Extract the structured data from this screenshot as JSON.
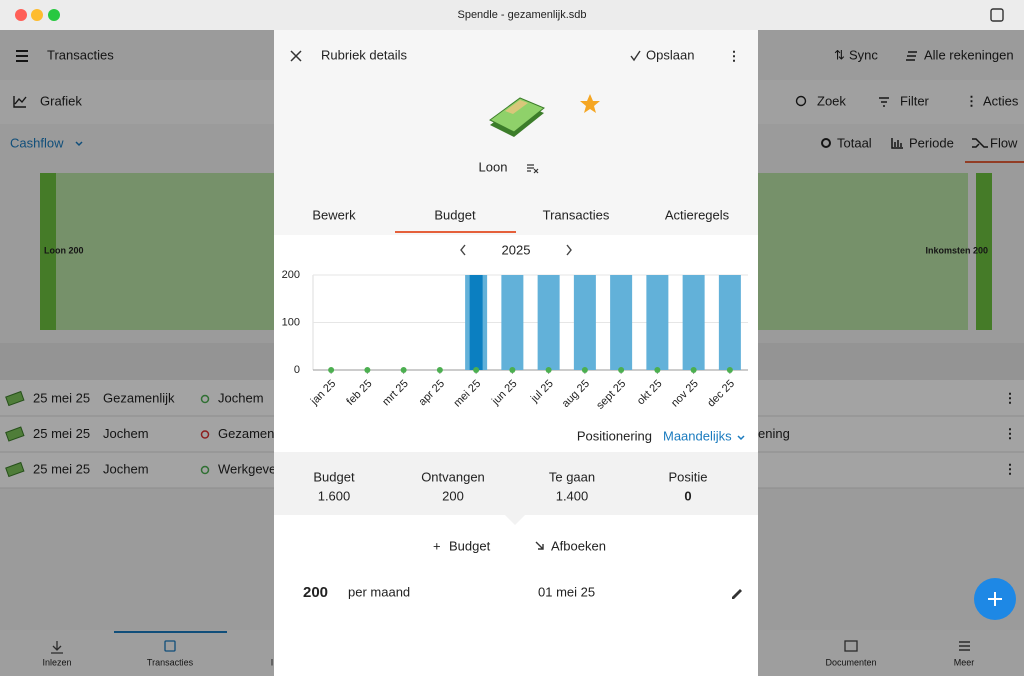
{
  "window": {
    "title": "Spendle - gezamenlijk.sdb"
  },
  "background": {
    "toolbar": {
      "title": "Transacties",
      "sync": "Sync",
      "accounts": "Alle rekeningen"
    },
    "subbar": {
      "title": "Grafiek",
      "search": "Zoek",
      "filter": "Filter",
      "actions": "Acties"
    },
    "view": {
      "selector": "Cashflow",
      "tabs": [
        "Totaal",
        "Periode",
        "Flow"
      ]
    },
    "flow": {
      "left": "Loon 200",
      "right": "Inkomsten 200"
    },
    "transactions": [
      {
        "date": "25 mei 25",
        "account": "Gezamenlijk",
        "counterparty": "Jochem"
      },
      {
        "date": "25 mei 25",
        "account": "Jochem",
        "counterparty": "Gezamen",
        "extra": "ening"
      },
      {
        "date": "25 mei 25",
        "account": "Jochem",
        "counterparty": "Werkgeve"
      }
    ],
    "nav": [
      "Inlezen",
      "Transacties",
      "I",
      "Documenten",
      "Meer"
    ]
  },
  "dialog": {
    "title": "Rubriek details",
    "save": "Opslaan",
    "category": "Loon",
    "tabs": [
      "Bewerk",
      "Budget",
      "Transacties",
      "Actieregels"
    ],
    "year": "2025",
    "positioning": {
      "label": "Positionering",
      "value": "Maandelijks"
    },
    "summary": [
      {
        "label": "Budget",
        "value": "1.600"
      },
      {
        "label": "Ontvangen",
        "value": "200"
      },
      {
        "label": "Te gaan",
        "value": "1.400"
      },
      {
        "label": "Positie",
        "value": "0"
      }
    ],
    "actions": [
      "Budget",
      "Afboeken"
    ],
    "entry": {
      "amount": "200",
      "period": "per maand",
      "date": "01 mei 25"
    }
  },
  "chart_data": {
    "type": "bar",
    "categories": [
      "jan 25",
      "feb 25",
      "mrt 25",
      "apr 25",
      "mei 25",
      "jun 25",
      "jul 25",
      "aug 25",
      "sept 25",
      "okt 25",
      "nov 25",
      "dec 25"
    ],
    "series": [
      {
        "color": "#62b1d9",
        "marker": "bar",
        "values": [
          0,
          0,
          0,
          0,
          200,
          200,
          200,
          200,
          200,
          200,
          200,
          200
        ]
      },
      {
        "color": "#0b7fc1",
        "marker": "bar",
        "values": [
          0,
          0,
          0,
          0,
          200,
          0,
          0,
          0,
          0,
          0,
          0,
          0
        ]
      },
      {
        "color": "#4caf50",
        "marker": "dot",
        "values": [
          0,
          0,
          0,
          0,
          0,
          0,
          0,
          0,
          0,
          0,
          0,
          0
        ]
      }
    ],
    "ylim": [
      0,
      200
    ],
    "yticks": [
      0,
      100,
      200
    ],
    "grid": true
  }
}
